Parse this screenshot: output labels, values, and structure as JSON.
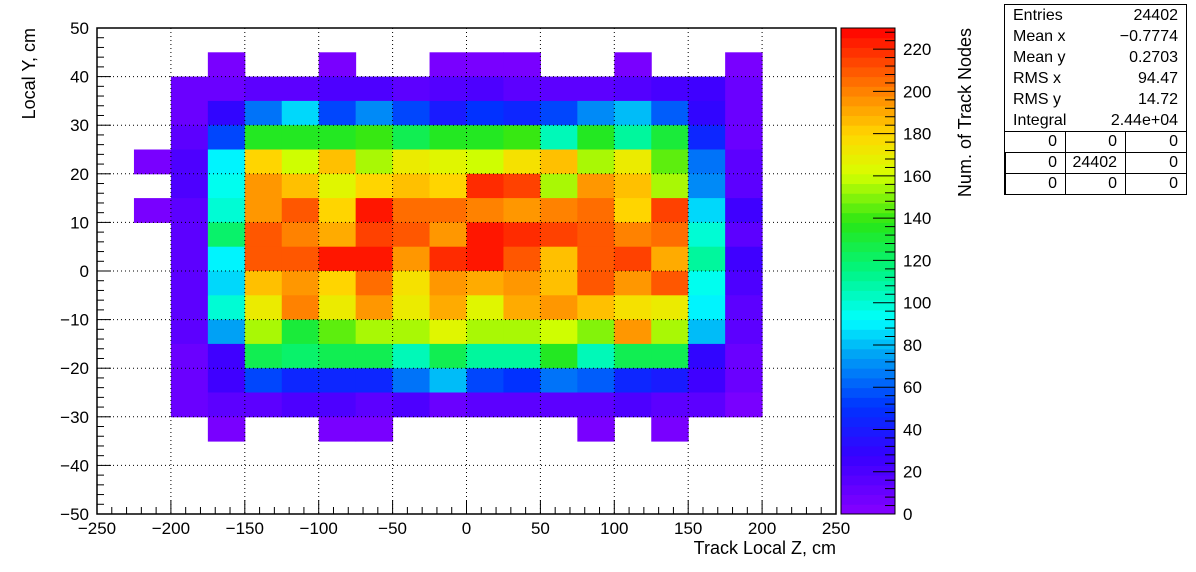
{
  "chart_data": {
    "type": "heatmap",
    "xlabel": "Track Local Z, cm",
    "ylabel": "Local Y, cm",
    "zlabel": "Num. of Track Nodes",
    "xlim": [
      -250,
      250
    ],
    "ylim": [
      -50,
      50
    ],
    "zlim": [
      0,
      230
    ],
    "x_ticks": [
      "−250",
      "−200",
      "−150",
      "−100",
      "−50",
      "0",
      "50",
      "100",
      "150",
      "200",
      "250"
    ],
    "y_ticks": [
      "50",
      "40",
      "30",
      "20",
      "10",
      "0",
      "−10",
      "−20",
      "−30",
      "−40",
      "−50"
    ],
    "z_ticks": [
      "220",
      "200",
      "180",
      "160",
      "140",
      "120",
      "100",
      "80",
      "60",
      "40",
      "20",
      "0"
    ],
    "grid": true,
    "colormap": "rainbow",
    "x_bin_edges": [
      -250,
      -225,
      -200,
      -175,
      -150,
      -125,
      -100,
      -75,
      -50,
      -25,
      0,
      25,
      50,
      75,
      100,
      125,
      150,
      175,
      200,
      225,
      250
    ],
    "y_bin_edges": [
      -50,
      -45,
      -40,
      -35,
      -30,
      -25,
      -20,
      -15,
      -10,
      -5,
      0,
      5,
      10,
      15,
      20,
      25,
      30,
      35,
      40,
      45,
      50
    ],
    "values_top_to_bottom": [
      [
        0,
        0,
        0,
        0,
        0,
        0,
        0,
        0,
        0,
        0,
        0,
        0,
        0,
        0,
        0,
        0,
        0,
        0,
        0,
        0
      ],
      [
        0,
        0,
        0,
        5,
        0,
        0,
        5,
        0,
        0,
        5,
        5,
        5,
        0,
        0,
        5,
        0,
        0,
        5,
        0,
        0
      ],
      [
        0,
        0,
        10,
        10,
        15,
        15,
        20,
        20,
        15,
        18,
        20,
        15,
        15,
        15,
        18,
        22,
        25,
        10,
        0,
        0
      ],
      [
        0,
        0,
        10,
        30,
        65,
        85,
        55,
        70,
        55,
        40,
        50,
        45,
        55,
        70,
        80,
        60,
        30,
        10,
        0,
        0
      ],
      [
        0,
        0,
        15,
        55,
        135,
        135,
        135,
        140,
        125,
        135,
        135,
        140,
        105,
        135,
        110,
        130,
        45,
        10,
        0,
        0
      ],
      [
        0,
        5,
        20,
        90,
        180,
        160,
        185,
        155,
        170,
        165,
        160,
        175,
        185,
        155,
        170,
        145,
        65,
        15,
        0,
        0
      ],
      [
        0,
        0,
        20,
        95,
        195,
        185,
        165,
        180,
        185,
        180,
        220,
        215,
        155,
        195,
        185,
        155,
        70,
        15,
        0,
        0
      ],
      [
        0,
        5,
        15,
        100,
        195,
        210,
        180,
        225,
        205,
        205,
        200,
        195,
        200,
        205,
        180,
        215,
        85,
        25,
        0,
        0
      ],
      [
        0,
        0,
        15,
        120,
        210,
        200,
        190,
        215,
        210,
        195,
        225,
        220,
        215,
        210,
        200,
        205,
        100,
        15,
        0,
        0
      ],
      [
        0,
        0,
        15,
        90,
        210,
        210,
        225,
        225,
        195,
        220,
        225,
        210,
        185,
        210,
        215,
        190,
        110,
        25,
        0,
        0
      ],
      [
        0,
        0,
        15,
        85,
        185,
        195,
        180,
        205,
        175,
        195,
        190,
        195,
        185,
        210,
        195,
        210,
        95,
        20,
        0,
        0
      ],
      [
        0,
        0,
        15,
        100,
        170,
        200,
        170,
        195,
        170,
        190,
        165,
        190,
        195,
        185,
        175,
        170,
        90,
        15,
        0,
        0
      ],
      [
        0,
        0,
        15,
        75,
        155,
        130,
        145,
        155,
        155,
        165,
        155,
        155,
        160,
        150,
        195,
        155,
        80,
        15,
        0,
        0
      ],
      [
        0,
        0,
        10,
        25,
        125,
        120,
        125,
        125,
        105,
        125,
        110,
        110,
        135,
        105,
        125,
        125,
        30,
        10,
        0,
        0
      ],
      [
        0,
        0,
        10,
        25,
        55,
        45,
        45,
        45,
        65,
        80,
        55,
        50,
        65,
        60,
        45,
        40,
        25,
        10,
        0,
        0
      ],
      [
        0,
        0,
        10,
        15,
        15,
        20,
        20,
        15,
        20,
        10,
        15,
        15,
        15,
        15,
        20,
        15,
        15,
        5,
        0,
        0
      ],
      [
        0,
        0,
        0,
        5,
        0,
        0,
        5,
        5,
        0,
        0,
        0,
        0,
        0,
        5,
        0,
        5,
        0,
        0,
        0,
        0
      ],
      [
        0,
        0,
        0,
        0,
        0,
        0,
        0,
        0,
        0,
        0,
        0,
        0,
        0,
        0,
        0,
        0,
        0,
        0,
        0,
        0
      ],
      [
        0,
        0,
        0,
        0,
        0,
        0,
        0,
        0,
        0,
        0,
        0,
        0,
        0,
        0,
        0,
        0,
        0,
        0,
        0,
        0
      ],
      [
        0,
        0,
        0,
        0,
        0,
        0,
        0,
        0,
        0,
        0,
        0,
        0,
        0,
        0,
        0,
        0,
        0,
        0,
        0,
        0
      ]
    ]
  },
  "stats": {
    "entries_label": "Entries",
    "entries_value": "24402",
    "meanx_label": "Mean x",
    "meanx_value": "−0.7774",
    "meany_label": "Mean y",
    "meany_value": "0.2703",
    "rmsx_label": "RMS x",
    "rmsx_value": "94.47",
    "rmsy_label": "RMS y",
    "rmsy_value": "14.72",
    "integral_label": "Integral",
    "integral_value": "2.44e+04",
    "grid": [
      [
        "0",
        "0",
        "0"
      ],
      [
        "0",
        "24402",
        "0"
      ],
      [
        "0",
        "0",
        "0"
      ]
    ]
  }
}
